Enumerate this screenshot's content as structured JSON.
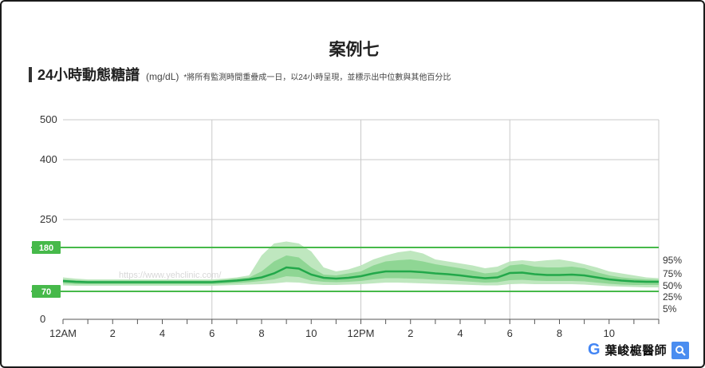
{
  "chart_data": {
    "type": "area",
    "title": "案例七",
    "subtitle": "24小時動態糖譜",
    "unit": "(mg/dL)",
    "note": "*將所有監測時間重疊成一日，以24小時呈現，並標示出中位數與其他百分比",
    "y_ticks": [
      "0",
      "70",
      "250",
      "400",
      "500"
    ],
    "y_tick_values": [
      0,
      70,
      250,
      400,
      500
    ],
    "x_ticks": [
      "12AM",
      "2",
      "4",
      "6",
      "8",
      "10",
      "12PM",
      "2",
      "4",
      "6",
      "8",
      "10"
    ],
    "xlim": [
      0,
      24
    ],
    "ylim": [
      0,
      500
    ],
    "y_scale": "piecewise: 0-250 compressed linear, 250-500 expanded linear",
    "target_range": {
      "low": 70,
      "high": 180,
      "low_label": "70",
      "high_label": "180"
    },
    "x": [
      0,
      0.5,
      1,
      1.5,
      2,
      2.5,
      3,
      3.5,
      4,
      4.5,
      5,
      5.5,
      6,
      6.5,
      7,
      7.5,
      8,
      8.5,
      9,
      9.5,
      10,
      10.5,
      11,
      11.5,
      12,
      12.5,
      13,
      13.5,
      14,
      14.5,
      15,
      15.5,
      16,
      16.5,
      17,
      17.5,
      18,
      18.5,
      19,
      19.5,
      20,
      20.5,
      21,
      21.5,
      22,
      22.5,
      23,
      23.5,
      24
    ],
    "series": [
      {
        "name": "95%",
        "values": [
          105,
          102,
          100,
          100,
          100,
          100,
          100,
          100,
          100,
          100,
          100,
          100,
          100,
          102,
          105,
          110,
          160,
          190,
          195,
          190,
          170,
          130,
          120,
          125,
          135,
          150,
          160,
          168,
          172,
          165,
          150,
          145,
          140,
          135,
          128,
          132,
          145,
          148,
          145,
          148,
          150,
          145,
          138,
          130,
          120,
          115,
          110,
          105,
          103
        ]
      },
      {
        "name": "75%",
        "values": [
          100,
          98,
          97,
          97,
          97,
          97,
          97,
          97,
          97,
          97,
          97,
          97,
          97,
          99,
          102,
          105,
          120,
          145,
          160,
          155,
          130,
          112,
          110,
          115,
          120,
          135,
          145,
          148,
          150,
          145,
          138,
          133,
          128,
          122,
          115,
          118,
          135,
          138,
          132,
          130,
          130,
          132,
          128,
          118,
          110,
          105,
          102,
          100,
          99
        ]
      },
      {
        "name": "50%",
        "values": [
          96,
          94,
          93,
          93,
          93,
          93,
          93,
          93,
          93,
          93,
          93,
          93,
          93,
          95,
          97,
          100,
          105,
          115,
          130,
          127,
          112,
          104,
          102,
          104,
          108,
          115,
          120,
          120,
          120,
          118,
          115,
          113,
          110,
          106,
          103,
          105,
          116,
          117,
          113,
          111,
          111,
          112,
          110,
          105,
          100,
          97,
          95,
          94,
          94
        ]
      },
      {
        "name": "25%",
        "values": [
          90,
          88,
          88,
          88,
          88,
          88,
          88,
          88,
          88,
          88,
          88,
          88,
          88,
          89,
          91,
          93,
          96,
          100,
          108,
          106,
          97,
          94,
          93,
          94,
          96,
          100,
          103,
          103,
          102,
          101,
          99,
          98,
          96,
          94,
          92,
          93,
          98,
          99,
          97,
          96,
          96,
          96,
          95,
          92,
          89,
          87,
          86,
          86,
          86
        ]
      },
      {
        "name": "5%",
        "values": [
          85,
          84,
          84,
          84,
          84,
          84,
          84,
          84,
          84,
          84,
          84,
          84,
          84,
          85,
          86,
          87,
          88,
          90,
          93,
          92,
          88,
          86,
          86,
          87,
          88,
          90,
          92,
          92,
          91,
          90,
          89,
          88,
          87,
          86,
          85,
          85,
          88,
          89,
          88,
          88,
          88,
          88,
          87,
          85,
          83,
          82,
          81,
          80,
          80
        ]
      }
    ],
    "percentile_labels": [
      "95%",
      "75%",
      "50%",
      "25%",
      "5%"
    ],
    "grid": true,
    "legend": "right"
  },
  "colors": {
    "outer_band": "#b8e4b8",
    "inner_band": "#7fd085",
    "median": "#22a84a",
    "target_line": "#46b94a",
    "target_box": "#46b94a",
    "grid": "#c9c9c9",
    "axis": "#555555"
  },
  "watermark": {
    "url_text": "https://www.yehclinic.com/"
  },
  "brand": {
    "logo_letter": "G",
    "name": "葉峻榳醫師",
    "search_icon": "search-icon"
  }
}
